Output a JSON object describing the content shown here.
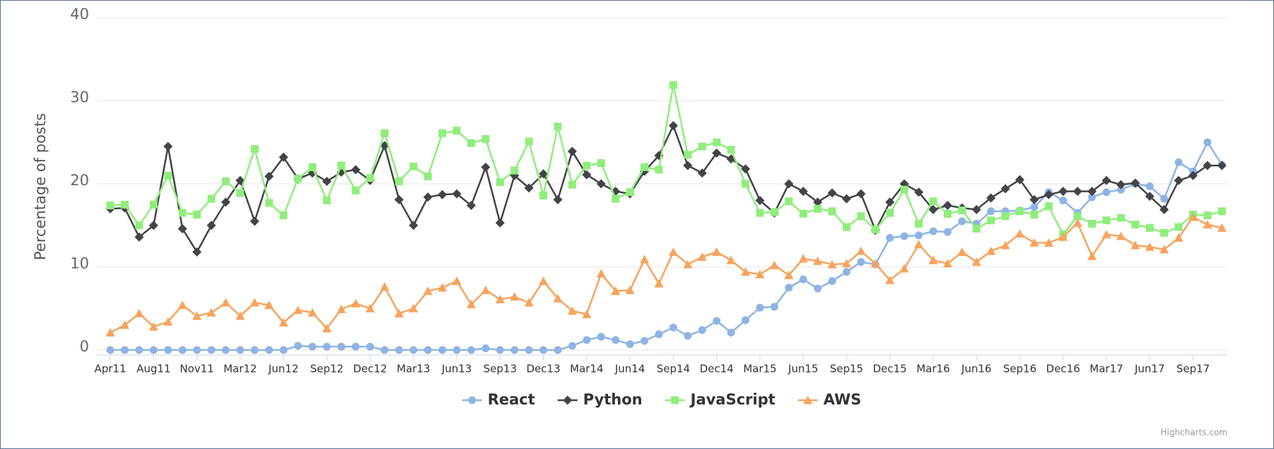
{
  "chart_data": {
    "type": "line",
    "y_label": "Percentage of posts",
    "credits": "Highcharts.com",
    "categories": [
      "Apr11",
      null,
      null,
      "Aug11",
      null,
      null,
      "Nov11",
      null,
      null,
      "Mar12",
      null,
      null,
      "Jun12",
      null,
      null,
      "Sep12",
      null,
      null,
      "Dec12",
      null,
      null,
      "Mar13",
      null,
      null,
      "Jun13",
      null,
      null,
      "Sep13",
      null,
      null,
      "Dec13",
      null,
      null,
      "Mar14",
      null,
      null,
      "Jun14",
      null,
      null,
      "Sep14",
      null,
      null,
      "Dec14",
      null,
      null,
      "Mar15",
      null,
      null,
      "Jun15",
      null,
      null,
      "Sep15",
      null,
      null,
      "Dec15",
      null,
      null,
      "Mar16",
      null,
      null,
      "Jun16",
      null,
      null,
      "Sep16",
      null,
      null,
      "Dec16",
      null,
      null,
      "Mar17",
      null,
      null,
      "Jun17",
      null,
      null,
      "Sep17",
      null,
      null
    ],
    "ylim": [
      0,
      40
    ],
    "yticks": [
      0,
      10,
      20,
      30,
      40
    ],
    "grid": true,
    "legend": "bottom",
    "series": [
      {
        "name": "React",
        "color": "#8fb4e3",
        "marker": "circle",
        "values": [
          0,
          0,
          0,
          0,
          0,
          0,
          0,
          0,
          0,
          0,
          0,
          0,
          0,
          0.5,
          0.4,
          0.4,
          0.4,
          0.4,
          0.4,
          0,
          0,
          0,
          0,
          0,
          0,
          0,
          0.2,
          0,
          0,
          0,
          0,
          0,
          0.5,
          1.2,
          1.6,
          1.2,
          0.7,
          1.1,
          1.9,
          2.7,
          1.7,
          2.4,
          3.5,
          2.1,
          3.6,
          5.1,
          5.2,
          7.5,
          8.5,
          7.4,
          8.3,
          9.4,
          10.6,
          10.3,
          13.5,
          13.7,
          13.8,
          14.3,
          14.2,
          15.5,
          15.2,
          16.7,
          16.7,
          16.8,
          17.2,
          19.0,
          18.0,
          16.5,
          18.4,
          19.0,
          19.3,
          20.0,
          19.7,
          18.2,
          22.6,
          21.5,
          25.0,
          22.3
        ]
      },
      {
        "name": "Python",
        "color": "#434348",
        "marker": "diamond",
        "values": [
          17.0,
          17.1,
          13.6,
          15.0,
          24.5,
          14.6,
          11.8,
          15.0,
          17.8,
          20.4,
          15.5,
          20.9,
          23.2,
          20.6,
          21.3,
          20.3,
          21.4,
          21.7,
          20.4,
          24.6,
          18.1,
          15.0,
          18.4,
          18.7,
          18.8,
          17.4,
          22.0,
          15.3,
          21.0,
          19.5,
          21.2,
          18.1,
          23.9,
          21.1,
          20.0,
          19.1,
          18.8,
          21.5,
          23.4,
          27.0,
          22.2,
          21.3,
          23.7,
          23.0,
          21.8,
          18.0,
          16.5,
          20.0,
          19.1,
          17.8,
          18.9,
          18.2,
          18.8,
          14.4,
          17.8,
          20.0,
          19.0,
          16.9,
          17.4,
          17.1,
          16.9,
          18.3,
          19.4,
          20.5,
          18.1,
          18.7,
          19.1,
          19.1,
          19.1,
          20.4,
          19.9,
          20.1,
          18.5,
          16.9,
          20.4,
          21.0,
          22.2,
          22.2
        ]
      },
      {
        "name": "JavaScript",
        "color": "#90ed7d",
        "marker": "square",
        "values": [
          17.4,
          17.5,
          15.0,
          17.5,
          21.0,
          16.5,
          16.3,
          18.2,
          20.3,
          18.9,
          24.2,
          17.7,
          16.2,
          20.6,
          22.0,
          18.0,
          22.2,
          19.2,
          20.7,
          26.1,
          20.3,
          22.1,
          20.9,
          26.1,
          26.4,
          24.9,
          25.4,
          20.2,
          21.6,
          25.1,
          18.6,
          26.9,
          19.9,
          22.2,
          22.5,
          18.2,
          19.0,
          22.0,
          21.7,
          31.9,
          23.5,
          24.5,
          25.0,
          24.1,
          20.0,
          16.5,
          16.6,
          17.9,
          16.4,
          17.0,
          16.7,
          14.8,
          16.1,
          14.5,
          16.5,
          19.3,
          15.2,
          17.9,
          16.4,
          16.8,
          14.6,
          15.6,
          16.1,
          16.7,
          16.3,
          17.3,
          13.9,
          16.1,
          15.2,
          15.6,
          15.9,
          15.1,
          14.7,
          14.1,
          14.8,
          16.3,
          16.2,
          16.7
        ]
      },
      {
        "name": "AWS",
        "color": "#f7a35c",
        "marker": "triangle",
        "values": [
          2.1,
          3.0,
          4.4,
          2.8,
          3.4,
          5.4,
          4.1,
          4.5,
          5.7,
          4.1,
          5.7,
          5.4,
          3.3,
          4.8,
          4.5,
          2.6,
          4.9,
          5.6,
          5.0,
          7.6,
          4.4,
          5.0,
          7.1,
          7.5,
          8.3,
          5.5,
          7.2,
          6.1,
          6.4,
          5.7,
          8.3,
          6.2,
          4.7,
          4.3,
          9.2,
          7.1,
          7.2,
          10.9,
          8.0,
          11.8,
          10.3,
          11.2,
          11.8,
          10.8,
          9.4,
          9.1,
          10.2,
          9.0,
          11.0,
          10.7,
          10.3,
          10.4,
          11.9,
          10.4,
          8.4,
          9.8,
          12.7,
          10.8,
          10.4,
          11.8,
          10.6,
          11.9,
          12.6,
          14.0,
          12.9,
          12.9,
          13.6,
          15.3,
          11.3,
          13.9,
          13.7,
          12.6,
          12.4,
          12.1,
          13.5,
          16.0,
          15.1,
          14.7
        ]
      }
    ]
  }
}
